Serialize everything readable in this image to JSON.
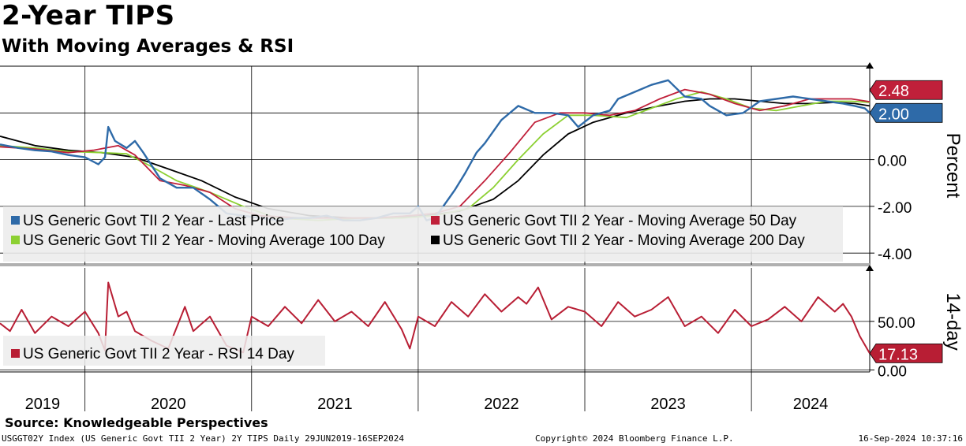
{
  "header": {
    "title": "2-Year TIPS",
    "subtitle": "With Moving Averages & RSI"
  },
  "footer": {
    "source": "Source: Knowledgeable Perspectives",
    "ticker_info": "USGGT02Y Index (US Generic Govt TII 2 Year) 2Y TIPS  Daily 29JUN2019-16SEP2024",
    "copyright": "Copyright© 2024 Bloomberg Finance L.P.",
    "timestamp": "16-Sep-2024 10:37:16"
  },
  "colors": {
    "last_price": "#2e6aa8",
    "ma50": "#c0203a",
    "ma100": "#8cd032",
    "ma200": "#000000",
    "rsi": "#b81e34"
  },
  "chart_data": [
    {
      "type": "line",
      "panel": "price",
      "ylabel": "Percent",
      "ylim": [
        -4.5,
        4.0
      ],
      "yticks": [
        -4.0,
        -2.0,
        0.0,
        2.0
      ],
      "ytick_labels": [
        "-4.00",
        "-2.00",
        "0.00",
        "2.00"
      ],
      "x_start": 2019.49,
      "x_end": 2024.71,
      "legend": [
        "US Generic Govt TII 2 Year - Last Price",
        "US Generic Govt TII 2 Year - Moving Average 50 Day",
        "US Generic Govt TII 2 Year - Moving Average 100 Day",
        "US Generic Govt TII 2 Year - Moving Average 200 Day"
      ],
      "last_value_labels": [
        {
          "series": "ma50",
          "label": "2.48",
          "value": 2.48
        },
        {
          "series": "last_price",
          "label": "2.00",
          "value": 2.0
        }
      ],
      "series": [
        {
          "name": "last_price",
          "x": [
            2019.49,
            2019.6,
            2019.7,
            2019.8,
            2019.9,
            2020.0,
            2020.08,
            2020.12,
            2020.14,
            2020.18,
            2020.25,
            2020.3,
            2020.35,
            2020.45,
            2020.55,
            2020.65,
            2020.75,
            2020.85,
            2020.95,
            2021.05,
            2021.15,
            2021.25,
            2021.35,
            2021.45,
            2021.55,
            2021.65,
            2021.75,
            2021.85,
            2021.95,
            2022.0,
            2022.05,
            2022.1,
            2022.18,
            2022.22,
            2022.28,
            2022.35,
            2022.4,
            2022.5,
            2022.6,
            2022.7,
            2022.8,
            2022.9,
            2022.96,
            2023.05,
            2023.15,
            2023.2,
            2023.3,
            2023.4,
            2023.5,
            2023.6,
            2023.7,
            2023.75,
            2023.85,
            2023.95,
            2024.05,
            2024.15,
            2024.25,
            2024.35,
            2024.45,
            2024.55,
            2024.62,
            2024.68,
            2024.71
          ],
          "values": [
            0.65,
            0.5,
            0.4,
            0.35,
            0.2,
            0.1,
            -0.2,
            0.1,
            1.4,
            0.8,
            0.5,
            0.8,
            0.3,
            -0.8,
            -1.2,
            -1.2,
            -1.7,
            -2.3,
            -2.4,
            -2.5,
            -2.6,
            -2.5,
            -2.5,
            -2.4,
            -2.6,
            -2.6,
            -2.5,
            -2.3,
            -2.3,
            -2.0,
            -2.6,
            -2.5,
            -1.7,
            -1.3,
            -0.6,
            0.3,
            0.7,
            1.7,
            2.3,
            2.0,
            2.0,
            1.9,
            1.4,
            1.9,
            2.1,
            2.6,
            2.9,
            3.2,
            3.4,
            2.7,
            2.6,
            2.3,
            1.9,
            2.0,
            2.5,
            2.6,
            2.7,
            2.6,
            2.5,
            2.4,
            2.3,
            2.2,
            2.0
          ]
        },
        {
          "name": "ma50",
          "x": [
            2019.49,
            2019.7,
            2019.9,
            2020.05,
            2020.2,
            2020.3,
            2020.45,
            2020.6,
            2020.75,
            2020.9,
            2021.05,
            2021.3,
            2021.5,
            2021.75,
            2021.95,
            2022.1,
            2022.25,
            2022.4,
            2022.55,
            2022.7,
            2022.85,
            2023.0,
            2023.15,
            2023.3,
            2023.45,
            2023.6,
            2023.75,
            2023.9,
            2024.05,
            2024.2,
            2024.35,
            2024.5,
            2024.6,
            2024.71
          ],
          "values": [
            0.55,
            0.45,
            0.3,
            0.4,
            0.6,
            0.2,
            -0.9,
            -1.1,
            -1.4,
            -2.1,
            -2.4,
            -2.5,
            -2.5,
            -2.5,
            -2.4,
            -2.3,
            -2.0,
            -0.9,
            0.3,
            1.6,
            2.0,
            2.0,
            1.9,
            2.1,
            2.6,
            3.0,
            2.8,
            2.4,
            2.1,
            2.3,
            2.6,
            2.6,
            2.6,
            2.48
          ]
        },
        {
          "name": "ma100",
          "x": [
            2019.49,
            2019.7,
            2019.9,
            2020.1,
            2020.25,
            2020.4,
            2020.55,
            2020.75,
            2020.95,
            2021.15,
            2021.4,
            2021.65,
            2021.9,
            2022.1,
            2022.3,
            2022.45,
            2022.6,
            2022.75,
            2022.9,
            2023.05,
            2023.25,
            2023.4,
            2023.55,
            2023.7,
            2023.85,
            2024.0,
            2024.15,
            2024.3,
            2024.45,
            2024.6,
            2024.71
          ],
          "values": [
            0.6,
            0.5,
            0.35,
            0.3,
            0.25,
            -0.3,
            -0.9,
            -1.4,
            -2.0,
            -2.5,
            -2.6,
            -2.5,
            -2.5,
            -2.4,
            -2.1,
            -1.2,
            0.0,
            1.1,
            1.9,
            1.9,
            1.8,
            2.2,
            2.6,
            2.9,
            2.6,
            2.2,
            2.1,
            2.3,
            2.5,
            2.5,
            2.45
          ]
        },
        {
          "name": "ma200",
          "x": [
            2019.49,
            2019.7,
            2019.9,
            2020.1,
            2020.3,
            2020.5,
            2020.7,
            2020.9,
            2021.1,
            2021.35,
            2021.6,
            2021.85,
            2022.05,
            2022.25,
            2022.45,
            2022.6,
            2022.75,
            2022.9,
            2023.05,
            2023.25,
            2023.45,
            2023.6,
            2023.75,
            2023.9,
            2024.05,
            2024.2,
            2024.35,
            2024.5,
            2024.62,
            2024.71
          ],
          "values": [
            1.0,
            0.6,
            0.4,
            0.3,
            0.1,
            -0.4,
            -0.9,
            -1.6,
            -2.1,
            -2.4,
            -2.5,
            -2.5,
            -2.4,
            -2.2,
            -1.7,
            -0.9,
            0.2,
            1.1,
            1.6,
            2.0,
            2.3,
            2.5,
            2.6,
            2.6,
            2.5,
            2.4,
            2.4,
            2.45,
            2.4,
            2.3
          ]
        }
      ]
    },
    {
      "type": "line",
      "panel": "rsi",
      "ylabel": "14-day",
      "ylim": [
        -2,
        105
      ],
      "yticks": [
        0,
        50
      ],
      "ytick_labels": [
        "0.00",
        "50.00"
      ],
      "x_start": 2019.49,
      "x_end": 2024.71,
      "legend": [
        "US Generic Govt TII 2 Year - RSI 14 Day"
      ],
      "last_value_labels": [
        {
          "series": "rsi",
          "label": "17.13",
          "value": 17.13
        }
      ],
      "series": [
        {
          "name": "rsi",
          "x": [
            2019.49,
            2019.55,
            2019.62,
            2019.7,
            2019.8,
            2019.9,
            2020.0,
            2020.08,
            2020.12,
            2020.14,
            2020.2,
            2020.25,
            2020.3,
            2020.4,
            2020.5,
            2020.6,
            2020.65,
            2020.75,
            2020.85,
            2020.95,
            2021.0,
            2021.1,
            2021.2,
            2021.3,
            2021.4,
            2021.5,
            2021.6,
            2021.7,
            2021.8,
            2021.9,
            2021.95,
            2022.0,
            2022.1,
            2022.2,
            2022.3,
            2022.4,
            2022.5,
            2022.6,
            2022.65,
            2022.72,
            2022.8,
            2022.9,
            2023.0,
            2023.1,
            2023.2,
            2023.3,
            2023.4,
            2023.5,
            2023.6,
            2023.7,
            2023.8,
            2023.9,
            2024.0,
            2024.1,
            2024.2,
            2024.3,
            2024.4,
            2024.5,
            2024.55,
            2024.6,
            2024.65,
            2024.71
          ],
          "values": [
            48,
            40,
            62,
            38,
            55,
            45,
            60,
            38,
            20,
            90,
            55,
            60,
            40,
            30,
            22,
            65,
            40,
            55,
            25,
            18,
            55,
            45,
            65,
            48,
            72,
            50,
            60,
            45,
            70,
            42,
            22,
            55,
            45,
            70,
            55,
            78,
            60,
            75,
            68,
            85,
            52,
            65,
            60,
            45,
            70,
            55,
            62,
            75,
            45,
            55,
            38,
            62,
            45,
            52,
            65,
            50,
            75,
            60,
            68,
            55,
            35,
            17.13
          ]
        }
      ]
    }
  ],
  "x_axis": {
    "year_labels": [
      {
        "label": "2019",
        "center": 2019.745
      },
      {
        "label": "2020",
        "center": 2020.5
      },
      {
        "label": "2021",
        "center": 2021.5
      },
      {
        "label": "2022",
        "center": 2022.5
      },
      {
        "label": "2023",
        "center": 2023.5
      },
      {
        "label": "2024",
        "center": 2024.355
      }
    ],
    "boundaries": [
      2020.0,
      2021.0,
      2022.0,
      2023.0,
      2024.0
    ]
  }
}
